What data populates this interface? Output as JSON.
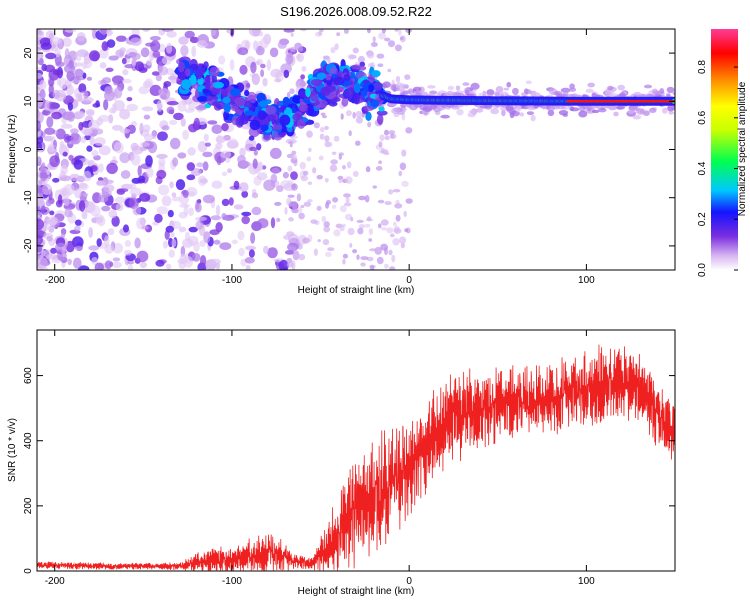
{
  "title": "S196.2026.008.09.52.R22",
  "chart_data": [
    {
      "type": "heatmap",
      "xlabel": "Height of straight line (km)",
      "ylabel": "Frequency (Hz)",
      "xlim": [
        -210,
        150
      ],
      "ylim": [
        -25,
        25
      ],
      "xticks": [
        -200,
        -100,
        0,
        100
      ],
      "yticks": [
        -20,
        -10,
        0,
        10,
        20
      ],
      "ridge": [
        {
          "x": -120,
          "y": 14.5
        },
        {
          "x": -105,
          "y": 12
        },
        {
          "x": -95,
          "y": 8.5
        },
        {
          "x": -85,
          "y": 7
        },
        {
          "x": -75,
          "y": 5.5
        },
        {
          "x": -62,
          "y": 8
        },
        {
          "x": -50,
          "y": 13
        },
        {
          "x": -40,
          "y": 14
        },
        {
          "x": -25,
          "y": 12.5
        },
        {
          "x": -10,
          "y": 10.5
        },
        {
          "x": 0,
          "y": 10.3
        },
        {
          "x": 20,
          "y": 10.2
        },
        {
          "x": 60,
          "y": 10.1
        },
        {
          "x": 100,
          "y": 10.0
        },
        {
          "x": 150,
          "y": 10.0
        }
      ],
      "colorbar": {
        "label": "Normalized spectral amplitude",
        "range": [
          0,
          0.95
        ],
        "ticks": [
          "0.0",
          "0.2",
          "0.4",
          "0.6",
          "0.8"
        ]
      }
    },
    {
      "type": "line",
      "xlabel": "Height of straight line (km)",
      "ylabel": "SNR (10 * v/v)",
      "xlim": [
        -210,
        150
      ],
      "ylim": [
        0,
        740
      ],
      "xticks": [
        -200,
        -100,
        0,
        100
      ],
      "yticks": [
        0,
        200,
        400,
        600
      ],
      "color": "#ee2020",
      "envelope": [
        {
          "x": -210,
          "mean": 18,
          "amp": 12
        },
        {
          "x": -160,
          "mean": 14,
          "amp": 10
        },
        {
          "x": -130,
          "mean": 15,
          "amp": 12
        },
        {
          "x": -115,
          "mean": 30,
          "amp": 40
        },
        {
          "x": -100,
          "mean": 35,
          "amp": 40
        },
        {
          "x": -90,
          "mean": 45,
          "amp": 55
        },
        {
          "x": -78,
          "mean": 60,
          "amp": 70
        },
        {
          "x": -65,
          "mean": 30,
          "amp": 25
        },
        {
          "x": -55,
          "mean": 25,
          "amp": 20
        },
        {
          "x": -45,
          "mean": 80,
          "amp": 90
        },
        {
          "x": -35,
          "mean": 160,
          "amp": 170
        },
        {
          "x": -20,
          "mean": 230,
          "amp": 180
        },
        {
          "x": -5,
          "mean": 300,
          "amp": 170
        },
        {
          "x": 10,
          "mean": 380,
          "amp": 150
        },
        {
          "x": 20,
          "mean": 460,
          "amp": 140
        },
        {
          "x": 40,
          "mean": 500,
          "amp": 130
        },
        {
          "x": 60,
          "mean": 520,
          "amp": 110
        },
        {
          "x": 80,
          "mean": 530,
          "amp": 110
        },
        {
          "x": 100,
          "mean": 560,
          "amp": 120
        },
        {
          "x": 115,
          "mean": 580,
          "amp": 120
        },
        {
          "x": 130,
          "mean": 560,
          "amp": 110
        },
        {
          "x": 140,
          "mean": 480,
          "amp": 110
        },
        {
          "x": 150,
          "mean": 420,
          "amp": 90
        }
      ]
    }
  ]
}
